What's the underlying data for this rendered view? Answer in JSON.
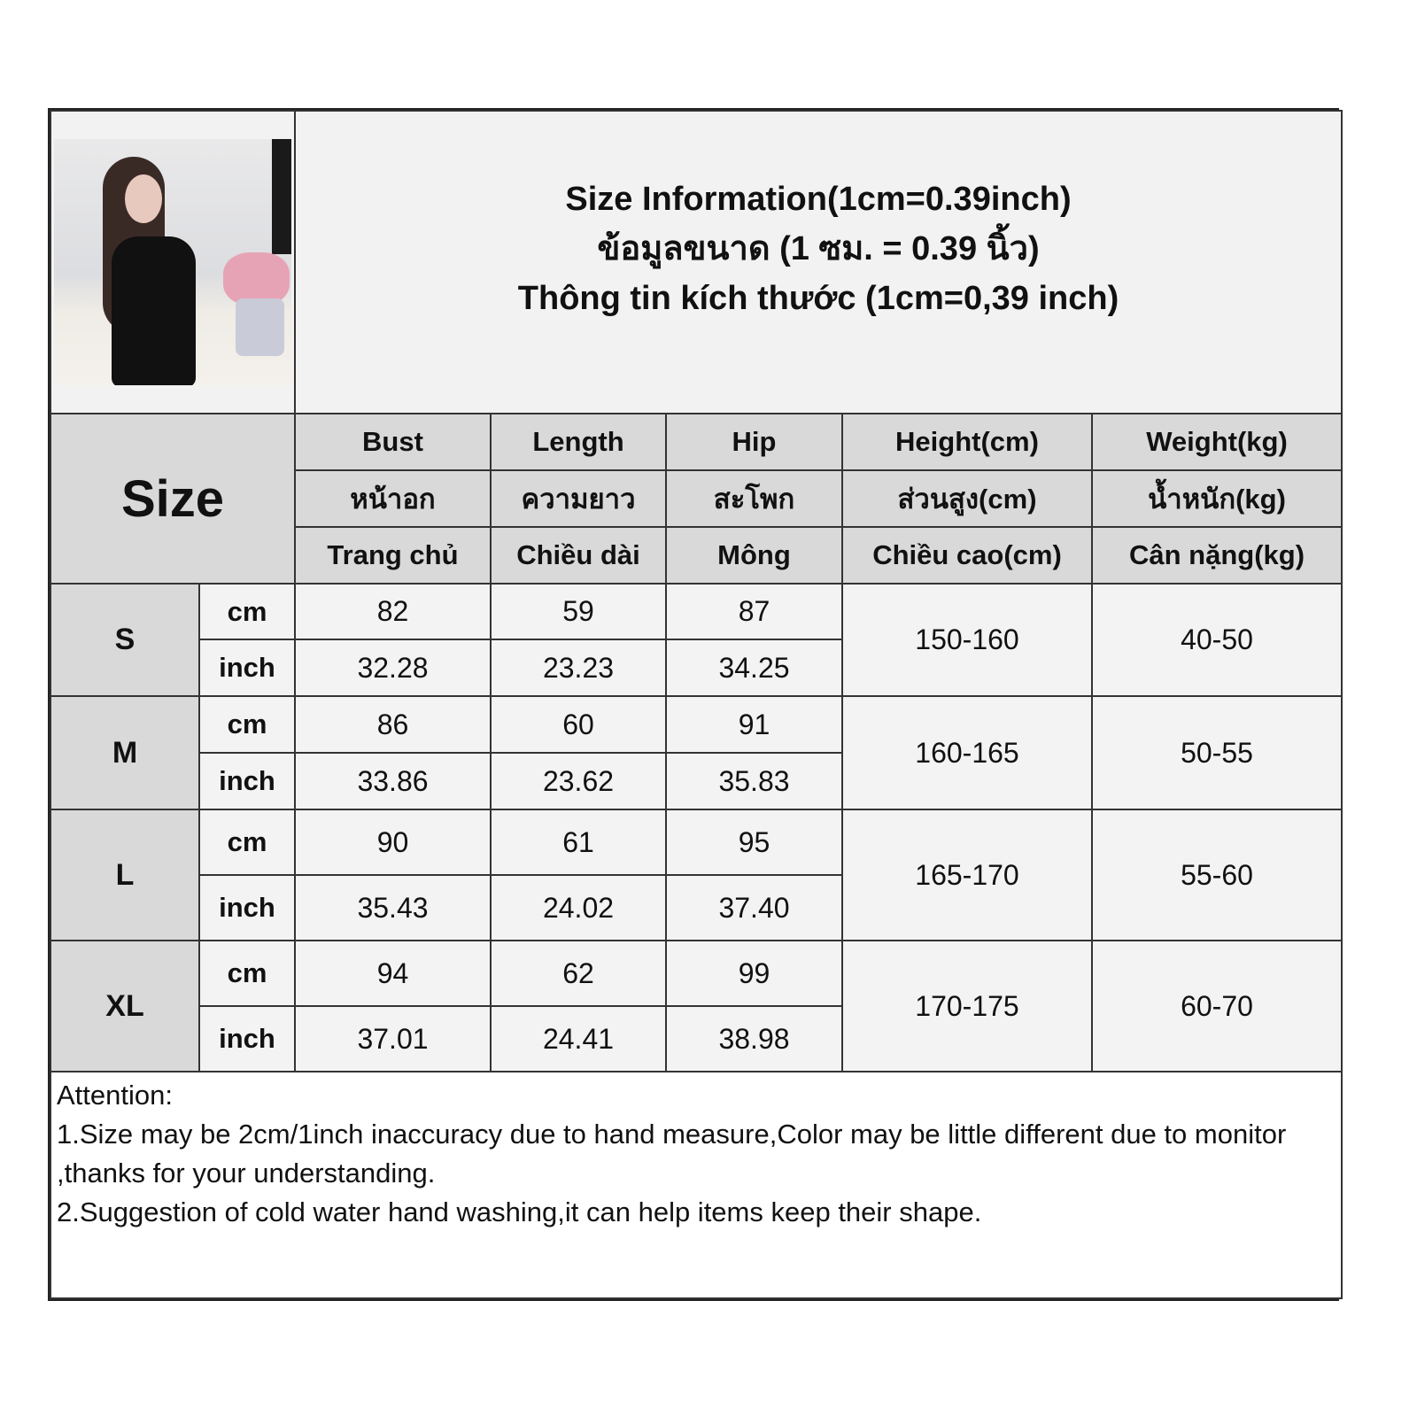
{
  "title": {
    "line1": "Size Information(1cm=0.39inch)",
    "line2": "ข้อมูลขนาด (1 ซม. = 0.39 นิ้ว)",
    "line3": "Thông tin kích thước (1cm=0,39 inch)"
  },
  "size_label": "Size",
  "headers": [
    {
      "en": "Bust",
      "th": "หน้าอก",
      "vi": "Trang chủ"
    },
    {
      "en": "Length",
      "th": "ความยาว",
      "vi": "Chiều dài"
    },
    {
      "en": "Hip",
      "th": "สะโพก",
      "vi": "Mông"
    },
    {
      "en": "Height(cm)",
      "th": "ส่วนสูง(cm)",
      "vi": "Chiều cao(cm)"
    },
    {
      "en": "Weight(kg)",
      "th": "น้ำหนัก(kg)",
      "vi": "Cân nặng(kg)"
    }
  ],
  "units": {
    "cm": "cm",
    "inch": "inch"
  },
  "rows": [
    {
      "size": "S",
      "cm": [
        "82",
        "59",
        "87"
      ],
      "inch": [
        "32.28",
        "23.23",
        "34.25"
      ],
      "height": "150-160",
      "weight": "40-50"
    },
    {
      "size": "M",
      "cm": [
        "86",
        "60",
        "91"
      ],
      "inch": [
        "33.86",
        "23.62",
        "35.83"
      ],
      "height": "160-165",
      "weight": "50-55"
    },
    {
      "size": "L",
      "cm": [
        "90",
        "61",
        "95"
      ],
      "inch": [
        "35.43",
        "24.02",
        "37.40"
      ],
      "height": "165-170",
      "weight": "55-60"
    },
    {
      "size": "XL",
      "cm": [
        "94",
        "62",
        "99"
      ],
      "inch": [
        "37.01",
        "24.41",
        "38.98"
      ],
      "height": "170-175",
      "weight": "60-70"
    }
  ],
  "attention": {
    "heading": "Attention:",
    "note1": "1.Size may be 2cm/1inch inaccuracy due to hand measure,Color may be little different due to monitor ,thanks for your understanding.",
    "note2": "2.Suggestion of cold water hand washing,it can help items keep their shape."
  }
}
